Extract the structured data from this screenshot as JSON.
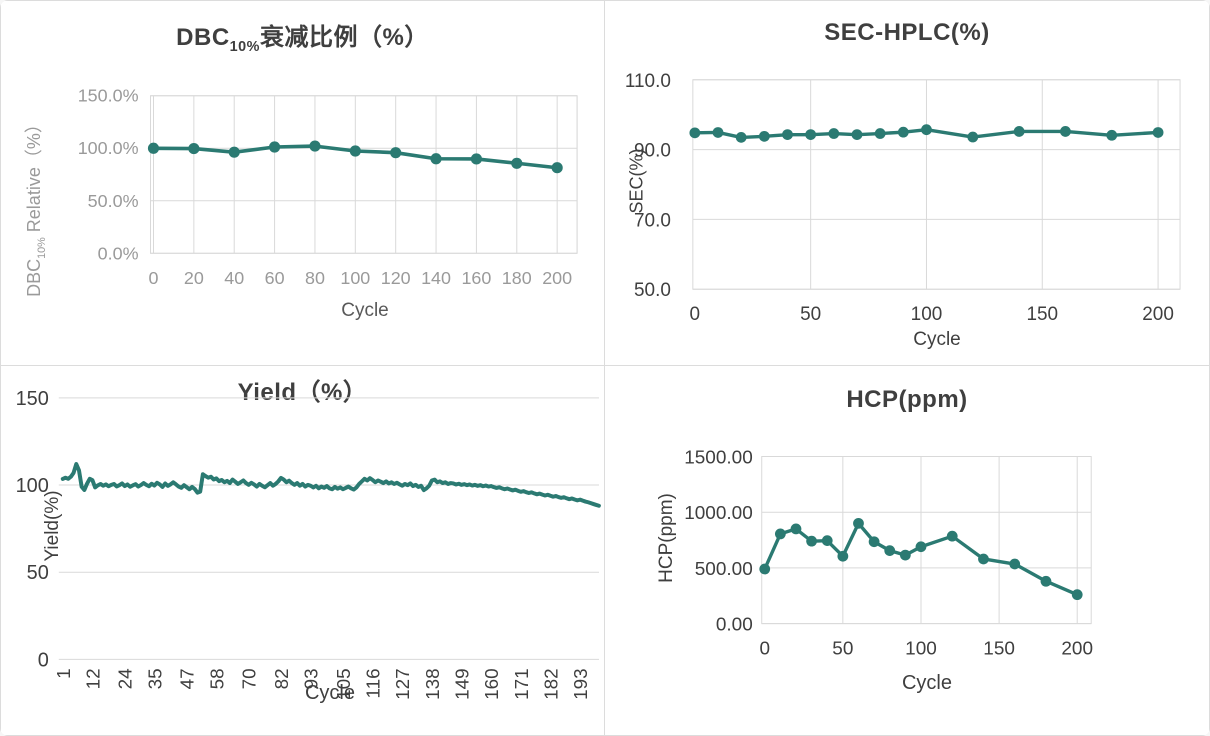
{
  "colors": {
    "series": "#2b7a72",
    "grid": "#d9d9d9",
    "title_text": "#3f3f3f",
    "axis_text_dark": "#3f3f3f",
    "axis_text_light": "#9a9a9a",
    "axis_title_muted": "#595959",
    "panel_border": "#dcdcdc",
    "background": "#ffffff"
  },
  "chart_data": [
    {
      "id": "dbc-decay",
      "type": "line",
      "title": "DBC10%衰减比例（%）",
      "title_pre": "DBC",
      "title_sub": "10%",
      "title_post": "衰减比例（%）",
      "xlabel": "Cycle",
      "ylabel": "DBC10% Relative（%）",
      "ylabel_pre": "DBC",
      "ylabel_sub": "10%",
      "ylabel_post": " Relative（%）",
      "x": [
        0,
        20,
        40,
        60,
        80,
        100,
        120,
        140,
        160,
        180,
        200
      ],
      "values": [
        100.0,
        99.7,
        96.3,
        101.2,
        102.1,
        97.4,
        95.8,
        90.0,
        89.8,
        85.7,
        81.5
      ],
      "ylim": [
        0,
        150
      ],
      "yticks": [
        0,
        50,
        100,
        150
      ],
      "ytick_labels": [
        "0.0%",
        "50.0%",
        "100.0%",
        "150.0%"
      ],
      "xticks": [
        0,
        20,
        40,
        60,
        80,
        100,
        120,
        140,
        160,
        180,
        200
      ],
      "xtick_labels": [
        "0",
        "20",
        "40",
        "60",
        "80",
        "100",
        "120",
        "140",
        "160",
        "180",
        "200"
      ],
      "marker": true,
      "grid": "both",
      "legend": "none"
    },
    {
      "id": "sec-hplc",
      "type": "line",
      "title": "SEC-HPLC(%)",
      "xlabel": "Cycle",
      "ylabel": "SEC(%)",
      "x": [
        0,
        10,
        20,
        30,
        40,
        50,
        60,
        70,
        80,
        90,
        100,
        120,
        140,
        160,
        180,
        200
      ],
      "values": [
        94.8,
        94.9,
        93.5,
        93.8,
        94.3,
        94.3,
        94.6,
        94.3,
        94.6,
        95.0,
        95.7,
        93.6,
        95.2,
        95.2,
        94.1,
        94.9
      ],
      "ylim": [
        50,
        110
      ],
      "yticks": [
        50,
        70,
        90,
        110
      ],
      "ytick_labels": [
        "50.0",
        "70.0",
        "90.0",
        "110.0"
      ],
      "xticks": [
        0,
        50,
        100,
        150,
        200
      ],
      "xtick_labels": [
        "0",
        "50",
        "100",
        "150",
        "200"
      ],
      "marker": true,
      "grid": "both",
      "legend": "none"
    },
    {
      "id": "yield",
      "type": "line",
      "title": "Yield（%）",
      "xlabel": "Cycle",
      "ylabel": "Yield(%)",
      "x_start": 1,
      "x_end": 200,
      "values": [
        103.5,
        104.2,
        103.6,
        104.8,
        107.0,
        112.0,
        108.5,
        99.0,
        97.2,
        100.8,
        103.6,
        102.8,
        98.6,
        99.8,
        100.6,
        99.6,
        100.4,
        99.3,
        100.1,
        100.6,
        99.2,
        99.9,
        100.9,
        99.4,
        100.3,
        99.0,
        99.8,
        100.5,
        99.1,
        100.0,
        101.1,
        100.1,
        99.3,
        100.7,
        99.7,
        101.3,
        100.3,
        98.9,
        100.9,
        99.5,
        100.4,
        101.6,
        100.4,
        99.1,
        98.4,
        99.9,
        98.7,
        97.6,
        98.9,
        97.7,
        95.6,
        96.2,
        106.2,
        105.1,
        104.2,
        104.8,
        103.2,
        103.8,
        102.2,
        102.9,
        101.6,
        102.4,
        101.1,
        103.1,
        101.9,
        100.6,
        101.6,
        102.6,
        101.1,
        100.1,
        101.3,
        100.3,
        99.1,
        100.6,
        99.6,
        98.7,
        99.9,
        101.1,
        99.6,
        100.6,
        102.1,
        104.1,
        103.1,
        101.6,
        102.5,
        101.1,
        100.1,
        101.1,
        99.6,
        100.6,
        99.1,
        100.1,
        99.6,
        98.6,
        99.6,
        98.1,
        99.1,
        98.4,
        99.4,
        98.1,
        97.6,
        98.9,
        97.9,
        98.6,
        97.6,
        98.3,
        99.1,
        98.1,
        97.4,
        98.6,
        100.6,
        102.1,
        103.6,
        102.6,
        103.9,
        102.9,
        101.6,
        102.6,
        101.9,
        101.1,
        102.1,
        100.9,
        101.6,
        100.6,
        101.3,
        100.4,
        99.6,
        100.6,
        99.9,
        100.9,
        99.4,
        100.1,
        98.9,
        99.6,
        97.1,
        98.1,
        99.6,
        102.6,
        103.1,
        101.6,
        102.1,
        101.1,
        101.6,
        100.6,
        101.1,
        100.9,
        100.3,
        100.7,
        100.1,
        100.5,
        99.9,
        100.3,
        99.7,
        100.1,
        99.5,
        99.9,
        99.3,
        99.7,
        99.1,
        99.4,
        98.8,
        98.3,
        98.7,
        98.1,
        97.6,
        98.0,
        97.4,
        96.9,
        97.3,
        96.7,
        96.1,
        96.5,
        95.9,
        95.4,
        95.8,
        95.2,
        94.7,
        95.1,
        94.5,
        94.0,
        94.4,
        93.8,
        93.3,
        93.7,
        93.1,
        92.6,
        93.0,
        92.4,
        91.9,
        92.3,
        91.7,
        91.2,
        91.6,
        91.0,
        90.5,
        90.1,
        89.6,
        89.1,
        88.6,
        88.1
      ],
      "ylim": [
        0,
        150
      ],
      "yticks": [
        0,
        50,
        100,
        150
      ],
      "ytick_labels": [
        "0",
        "50",
        "100",
        "150"
      ],
      "xticks": [
        1,
        12,
        24,
        35,
        47,
        58,
        70,
        82,
        93,
        105,
        116,
        127,
        138,
        149,
        160,
        171,
        182,
        193
      ],
      "xtick_labels": [
        "1",
        "12",
        "24",
        "35",
        "47",
        "58",
        "70",
        "82",
        "93",
        "105",
        "116",
        "127",
        "138",
        "149",
        "160",
        "171",
        "182",
        "193"
      ],
      "marker": false,
      "grid": "horizontal",
      "legend": "none"
    },
    {
      "id": "hcp",
      "type": "line",
      "title": "HCP(ppm)",
      "xlabel": "Cycle",
      "ylabel": "HCP(ppm)",
      "x": [
        0,
        10,
        20,
        30,
        40,
        50,
        60,
        70,
        80,
        90,
        100,
        120,
        140,
        160,
        180,
        200
      ],
      "values": [
        490,
        805,
        850,
        740,
        745,
        605,
        900,
        735,
        655,
        615,
        690,
        785,
        580,
        535,
        380,
        260
      ],
      "ylim": [
        0,
        1500
      ],
      "yticks": [
        0,
        500,
        1000,
        1500
      ],
      "ytick_labels": [
        "0.00",
        "500.00",
        "1000.00",
        "1500.00"
      ],
      "xticks": [
        0,
        50,
        100,
        150,
        200
      ],
      "xtick_labels": [
        "0",
        "50",
        "100",
        "150",
        "200"
      ],
      "marker": true,
      "grid": "both",
      "legend": "none"
    }
  ]
}
